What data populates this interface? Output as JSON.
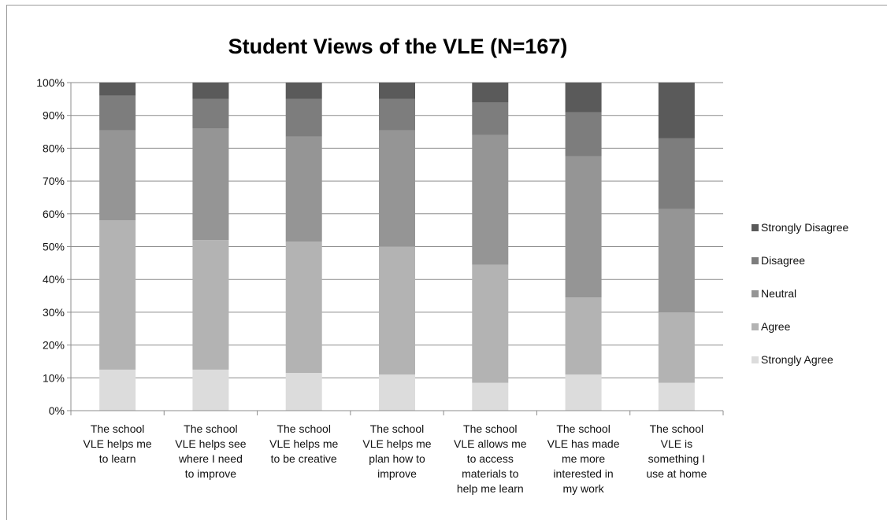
{
  "chart_data": {
    "type": "bar",
    "stacked": true,
    "percent": true,
    "title": "Student Views of the VLE (N=167)",
    "xlabel": "",
    "ylabel": "",
    "ylim": [
      0,
      100
    ],
    "yticks": [
      "0%",
      "10%",
      "20%",
      "30%",
      "40%",
      "50%",
      "60%",
      "70%",
      "80%",
      "90%",
      "100%"
    ],
    "grid": true,
    "legend": "right",
    "categories": [
      "The school VLE helps me to learn",
      "The school VLE helps see where I need to improve",
      "The school VLE helps me to be creative",
      "The school VLE helps me plan how to improve",
      "The school VLE allows me to access materials to help me learn",
      "The school VLE has made me more interested in my work",
      "The school VLE is something I use at home"
    ],
    "category_lines": [
      [
        "The school",
        "VLE helps me",
        "to learn"
      ],
      [
        "The school",
        "VLE helps see",
        "where I need",
        "to improve"
      ],
      [
        "The school",
        "VLE helps me",
        "to be creative"
      ],
      [
        "The school",
        "VLE helps me",
        "plan how to",
        "improve"
      ],
      [
        "The school",
        "VLE allows me",
        "to access",
        "materials to",
        "help me learn"
      ],
      [
        "The school",
        "VLE has made",
        "me more",
        "interested in",
        "my work"
      ],
      [
        "The school",
        "VLE is",
        "something I",
        "use at home"
      ]
    ],
    "series": [
      {
        "name": "Strongly Agree",
        "color": "#dcdcdc",
        "values": [
          12.5,
          12.5,
          11.5,
          11,
          8.5,
          11,
          8.5
        ]
      },
      {
        "name": "Agree",
        "color": "#b3b3b3",
        "values": [
          45.5,
          39.5,
          40,
          39,
          36,
          23.5,
          21.5
        ]
      },
      {
        "name": "Neutral",
        "color": "#959595",
        "values": [
          27.5,
          34,
          32,
          35.5,
          39.5,
          43,
          31.5
        ]
      },
      {
        "name": "Disagree",
        "color": "#7d7d7d",
        "values": [
          10.5,
          9,
          11.5,
          9.5,
          10,
          13.5,
          21.5
        ]
      },
      {
        "name": "Strongly Disagree",
        "color": "#5a5a5a",
        "values": [
          4,
          5,
          5,
          5,
          6,
          9,
          17
        ]
      }
    ]
  }
}
